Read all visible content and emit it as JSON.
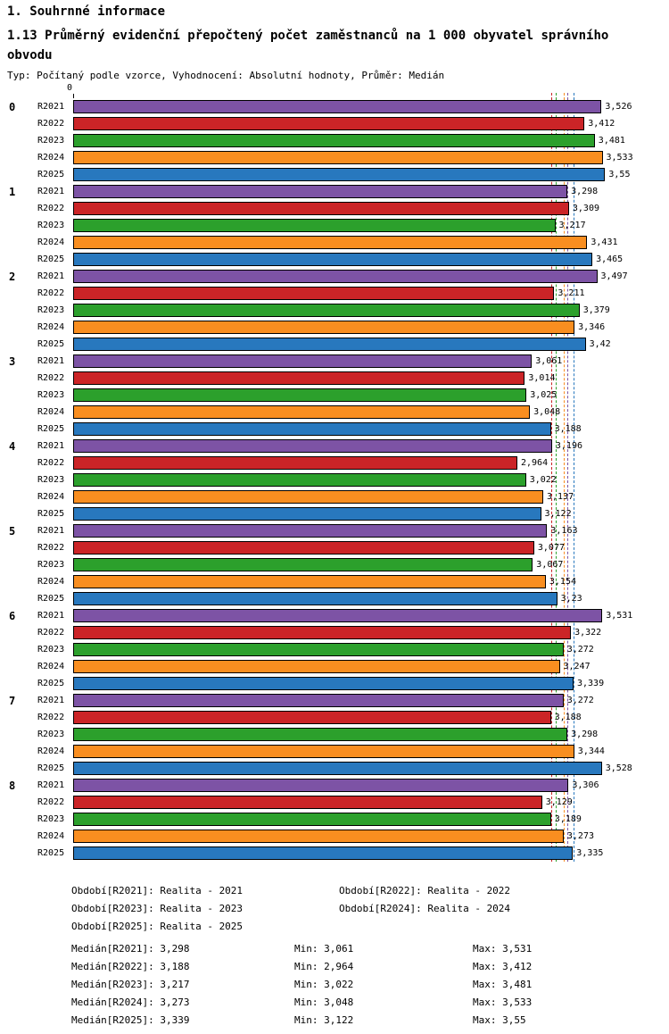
{
  "header": {
    "section_title": "1. Souhrnné informace",
    "chart_title": "1.13 Průměrný evidenční přepočtený počet zaměstnanců na 1 000 obyvatel správního obvodu",
    "subtitle": "Typ: Počítaný podle vzorce, Vyhodnocení: Absolutní hodnoty, Průměr: Medián"
  },
  "chart_data": {
    "type": "bar",
    "orientation": "horizontal",
    "x_origin_label": "0",
    "xlim": [
      0,
      3.97
    ],
    "decimal_separator": ",",
    "grid": false,
    "median_lines": true,
    "series": [
      {
        "name": "R2021",
        "color": "#7D53A5",
        "median": 3.298
      },
      {
        "name": "R2022",
        "color": "#CB2427",
        "median": 3.188
      },
      {
        "name": "R2023",
        "color": "#2CA02C",
        "median": 3.217
      },
      {
        "name": "R2024",
        "color": "#F98E20",
        "median": 3.273
      },
      {
        "name": "R2025",
        "color": "#2878BE",
        "median": 3.339
      }
    ],
    "groups": [
      {
        "label": "0",
        "values": [
          "3,526",
          "3,412",
          "3,481",
          "3,533",
          "3,55"
        ]
      },
      {
        "label": "1",
        "values": [
          "3,298",
          "3,309",
          "3,217",
          "3,431",
          "3,465"
        ]
      },
      {
        "label": "2",
        "values": [
          "3,497",
          "3,211",
          "3,379",
          "3,346",
          "3,42"
        ]
      },
      {
        "label": "3",
        "values": [
          "3,061",
          "3,014",
          "3,025",
          "3,048",
          "3,188"
        ]
      },
      {
        "label": "4",
        "values": [
          "3,196",
          "2,964",
          "3,022",
          "3,137",
          "3,122"
        ]
      },
      {
        "label": "5",
        "values": [
          "3,163",
          "3,077",
          "3,067",
          "3,154",
          "3,23"
        ]
      },
      {
        "label": "6",
        "values": [
          "3,531",
          "3,322",
          "3,272",
          "3,247",
          "3,339"
        ]
      },
      {
        "label": "7",
        "values": [
          "3,272",
          "3,188",
          "3,298",
          "3,344",
          "3,528"
        ]
      },
      {
        "label": "8",
        "values": [
          "3,306",
          "3,129",
          "3,189",
          "3,273",
          "3,335"
        ]
      }
    ]
  },
  "legend": {
    "items": [
      "Období[R2021]: Realita - 2021",
      "Období[R2022]: Realita - 2022",
      "Období[R2023]: Realita - 2023",
      "Období[R2024]: Realita - 2024",
      "Období[R2025]: Realita - 2025"
    ]
  },
  "stats": {
    "rows": [
      {
        "median": "Medián[R2021]: 3,298",
        "min": "Min: 3,061",
        "max": "Max: 3,531"
      },
      {
        "median": "Medián[R2022]: 3,188",
        "min": "Min: 2,964",
        "max": "Max: 3,412"
      },
      {
        "median": "Medián[R2023]: 3,217",
        "min": "Min: 3,022",
        "max": "Max: 3,481"
      },
      {
        "median": "Medián[R2024]: 3,273",
        "min": "Min: 3,048",
        "max": "Max: 3,533"
      },
      {
        "median": "Medián[R2025]: 3,339",
        "min": "Min: 3,122",
        "max": "Max: 3,55"
      }
    ]
  }
}
